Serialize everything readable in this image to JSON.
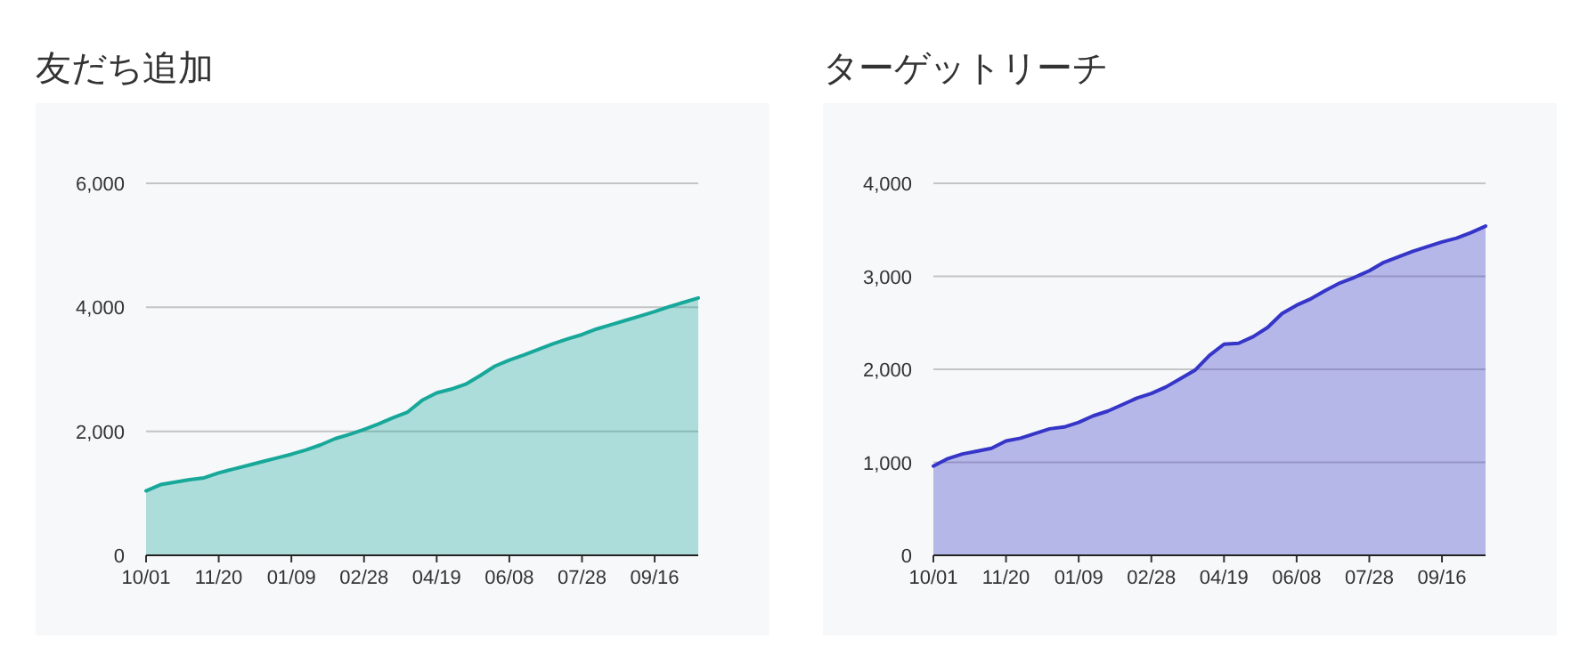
{
  "chart_data": [
    {
      "type": "area",
      "title": "友だち追加",
      "grid": "y",
      "ylim": [
        0,
        6000
      ],
      "yticks": [
        {
          "value": 0,
          "label": "0"
        },
        {
          "value": 2000,
          "label": "2,000"
        },
        {
          "value": 4000,
          "label": "4,000"
        },
        {
          "value": 6000,
          "label": "6,000"
        }
      ],
      "categories": [
        "10/01",
        null,
        null,
        null,
        null,
        "11/20",
        null,
        null,
        null,
        null,
        "01/09",
        null,
        null,
        null,
        null,
        "02/28",
        null,
        null,
        null,
        null,
        "04/19",
        null,
        null,
        null,
        null,
        "06/08",
        null,
        null,
        null,
        null,
        "07/28",
        null,
        null,
        null,
        null,
        "09/16",
        null,
        null,
        null
      ],
      "series": [
        {
          "color": "#17a89a",
          "values": [
            1040,
            1140,
            1180,
            1220,
            1250,
            1330,
            1390,
            1450,
            1510,
            1570,
            1630,
            1700,
            1780,
            1880,
            1950,
            2030,
            2120,
            2220,
            2310,
            2500,
            2620,
            2680,
            2760,
            2900,
            3050,
            3150,
            3230,
            3320,
            3410,
            3490,
            3560,
            3650,
            3720,
            3790,
            3860,
            3930,
            4010,
            4080,
            4150
          ]
        }
      ]
    },
    {
      "type": "area",
      "title": "ターゲットリーチ",
      "grid": "y",
      "ylim": [
        0,
        4000
      ],
      "yticks": [
        {
          "value": 0,
          "label": "0"
        },
        {
          "value": 1000,
          "label": "1,000"
        },
        {
          "value": 2000,
          "label": "2,000"
        },
        {
          "value": 3000,
          "label": "3,000"
        },
        {
          "value": 4000,
          "label": "4,000"
        }
      ],
      "categories": [
        "10/01",
        null,
        null,
        null,
        null,
        "11/20",
        null,
        null,
        null,
        null,
        "01/09",
        null,
        null,
        null,
        null,
        "02/28",
        null,
        null,
        null,
        null,
        "04/19",
        null,
        null,
        null,
        null,
        "06/08",
        null,
        null,
        null,
        null,
        "07/28",
        null,
        null,
        null,
        null,
        "09/16",
        null,
        null,
        null
      ],
      "series": [
        {
          "color": "#3535c8",
          "values": [
            960,
            1040,
            1090,
            1120,
            1150,
            1230,
            1260,
            1310,
            1360,
            1380,
            1430,
            1500,
            1550,
            1620,
            1690,
            1740,
            1810,
            1900,
            1990,
            2150,
            2270,
            2280,
            2350,
            2450,
            2600,
            2690,
            2760,
            2850,
            2930,
            2990,
            3060,
            3150,
            3210,
            3270,
            3320,
            3370,
            3410,
            3470,
            3540
          ]
        }
      ]
    }
  ]
}
